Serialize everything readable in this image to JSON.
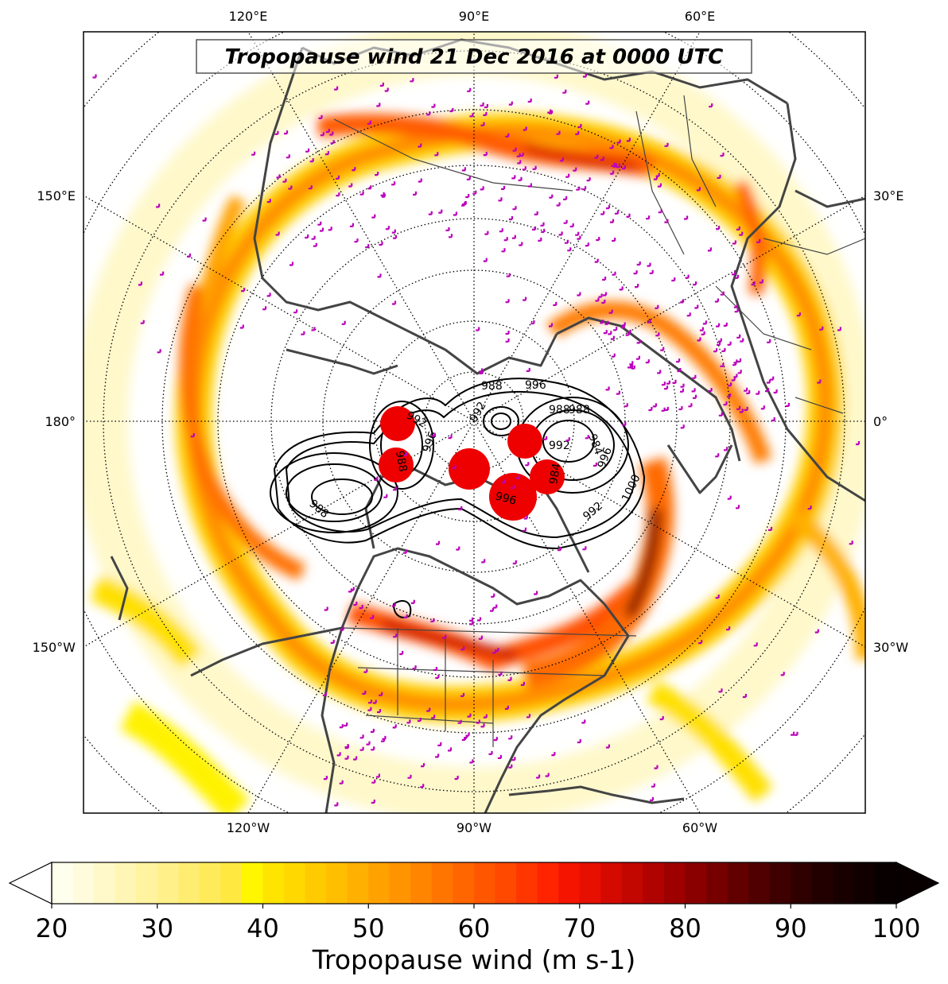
{
  "map": {
    "title": "Tropopause wind 21 Dec 2016 at 0000 UTC",
    "projection": "north polar stereographic",
    "field": "tropopause wind speed",
    "overlay": "mean sea level pressure contours (hPa)",
    "marker_color": "#bb00bb",
    "low_marker_color": "#ee0000",
    "coastline_color": "#444444",
    "top_longitude_labels": [
      "120°E",
      "90°E",
      "60°E"
    ],
    "bottom_longitude_labels": [
      "120°W",
      "90°W",
      "60°W"
    ],
    "left_longitude_labels": [
      "150°E",
      "180°",
      "150°W"
    ],
    "right_longitude_labels": [
      "30°E",
      "0°",
      "30°W"
    ],
    "contour_labels": [
      "992",
      "988",
      "996",
      "988",
      "988",
      "996",
      "992",
      "996",
      "988",
      "988",
      "992",
      "984",
      "996",
      "1000",
      "984",
      "992"
    ]
  },
  "colorbar": {
    "label": "Tropopause wind (m s-1)",
    "ticks": [
      "20",
      "30",
      "40",
      "50",
      "60",
      "70",
      "80",
      "90",
      "100"
    ],
    "min": 20,
    "max": 100,
    "step": 2,
    "colors": [
      "#ffffee",
      "#fffbdc",
      "#fff8c8",
      "#fff5b4",
      "#fff3a0",
      "#fff08a",
      "#ffed72",
      "#ffea5a",
      "#ffe840",
      "#fff600",
      "#ffe400",
      "#ffd800",
      "#ffcb00",
      "#ffbe00",
      "#ffb000",
      "#ffa200",
      "#ff9300",
      "#ff8400",
      "#ff7500",
      "#ff6600",
      "#ff5700",
      "#ff4800",
      "#ff3600",
      "#ff2400",
      "#f51400",
      "#e60f00",
      "#d40a00",
      "#c20600",
      "#b00300",
      "#9e0000",
      "#8a0000",
      "#760000",
      "#620000",
      "#500000",
      "#3e0000",
      "#2e0000",
      "#220000",
      "#180000",
      "#100000",
      "#080000"
    ],
    "extend": "both"
  }
}
